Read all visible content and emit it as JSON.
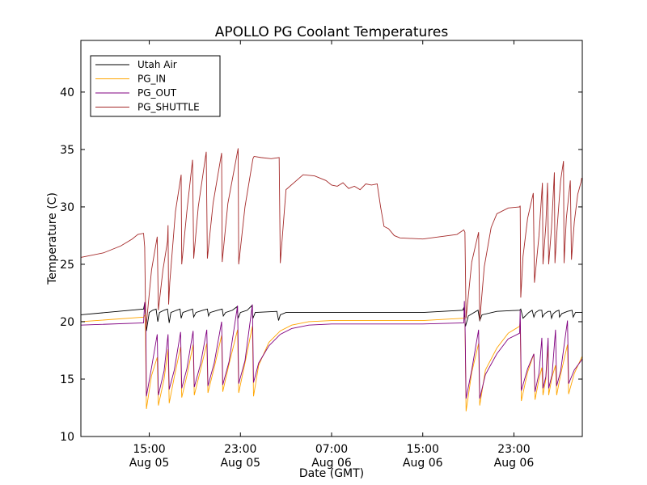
{
  "chart_data": {
    "type": "line",
    "title": "APOLLO PG Coolant Temperatures",
    "xlabel": "Date (GMT)",
    "ylabel": "Temperature (C)",
    "x_unit": "hours since Aug 05 09:00 GMT",
    "xlim": [
      0,
      44
    ],
    "ylim": [
      10,
      44.5
    ],
    "y_ticks": [
      10,
      15,
      20,
      25,
      30,
      35,
      40
    ],
    "x_ticks": [
      {
        "value": 6,
        "time": "15:00",
        "date": "Aug 05"
      },
      {
        "value": 14,
        "time": "23:00",
        "date": "Aug 05"
      },
      {
        "value": 22,
        "time": "07:00",
        "date": "Aug 06"
      },
      {
        "value": 30,
        "time": "15:00",
        "date": "Aug 06"
      },
      {
        "value": 38,
        "time": "23:00",
        "date": "Aug 06"
      }
    ],
    "legend_position": "top-left",
    "series": [
      {
        "name": "Utah Air",
        "color": "#000000",
        "x": [
          0,
          5.5,
          5.6,
          5.75,
          6.0,
          6.3,
          6.6,
          6.75,
          6.9,
          7.3,
          7.6,
          7.75,
          7.9,
          8.4,
          8.7,
          8.8,
          8.95,
          9.5,
          9.8,
          9.9,
          10.1,
          10.7,
          11.1,
          11.2,
          11.35,
          12.0,
          12.4,
          12.5,
          12.7,
          13.3,
          13.7,
          13.8,
          14.0,
          14.6,
          15.0,
          15.1,
          15.3,
          17.2,
          17.35,
          17.5,
          18.0,
          22.0,
          26.0,
          30.0,
          33.5,
          33.6,
          33.75,
          34.0,
          34.5,
          34.85,
          35.0,
          35.2,
          36.5,
          38.5,
          38.6,
          38.8,
          39.3,
          39.6,
          39.75,
          39.9,
          40.2,
          40.45,
          40.5,
          40.7,
          41.0,
          41.2,
          41.3,
          41.45,
          41.7,
          41.95,
          42.0,
          42.2,
          42.7,
          43.1,
          43.2,
          43.4,
          44.0
        ],
        "y": [
          20.6,
          21.1,
          21.6,
          19.2,
          20.8,
          21.0,
          21.1,
          20.0,
          20.8,
          21.0,
          21.1,
          19.9,
          20.8,
          21.0,
          21.1,
          20.3,
          20.8,
          21.0,
          21.1,
          20.4,
          20.8,
          21.0,
          21.1,
          20.5,
          20.8,
          21.0,
          21.1,
          20.5,
          20.8,
          21.0,
          21.3,
          20.3,
          20.8,
          21.0,
          21.4,
          20.3,
          20.8,
          20.9,
          20.1,
          20.6,
          20.8,
          20.8,
          20.8,
          20.8,
          21.0,
          21.2,
          19.6,
          20.5,
          20.8,
          21.0,
          20.1,
          20.6,
          20.9,
          21.0,
          21.1,
          20.3,
          20.8,
          21.0,
          20.4,
          20.8,
          21.0,
          21.0,
          20.4,
          20.7,
          20.9,
          20.9,
          20.3,
          20.7,
          20.9,
          21.0,
          20.4,
          20.7,
          20.9,
          21.0,
          20.4,
          20.8,
          20.8
        ]
      },
      {
        "name": "PG_IN",
        "color": "#ffa500",
        "x": [
          0,
          5.5,
          5.65,
          5.75,
          6.2,
          6.7,
          6.8,
          7.3,
          7.65,
          7.75,
          8.2,
          8.75,
          8.85,
          9.3,
          9.85,
          9.95,
          10.5,
          11.05,
          11.15,
          11.7,
          12.35,
          12.45,
          13.0,
          13.75,
          13.85,
          14.4,
          15.05,
          15.15,
          15.6,
          16.5,
          17.5,
          18.5,
          20.0,
          22.0,
          26.0,
          30.0,
          33.6,
          33.7,
          33.8,
          34.3,
          34.9,
          35.0,
          35.5,
          36.5,
          37.5,
          38.5,
          38.55,
          38.65,
          39.2,
          39.75,
          39.85,
          40.2,
          40.45,
          40.55,
          40.8,
          41.0,
          41.05,
          41.35,
          41.65,
          41.75,
          42.1,
          42.7,
          42.8,
          43.3,
          43.9,
          43.95,
          44.0
        ],
        "y": [
          20.0,
          20.4,
          20.6,
          12.4,
          15.3,
          16.9,
          12.7,
          15.0,
          17.6,
          12.9,
          15.2,
          17.8,
          13.4,
          15.3,
          18.0,
          13.6,
          15.8,
          18.1,
          13.8,
          16.0,
          18.8,
          13.9,
          16.3,
          19.3,
          13.8,
          16.4,
          19.6,
          13.5,
          16.2,
          18.2,
          19.2,
          19.7,
          20.0,
          20.1,
          20.1,
          20.1,
          20.3,
          20.4,
          12.2,
          15.6,
          18.1,
          12.7,
          15.8,
          17.7,
          19.0,
          19.6,
          20.0,
          13.1,
          15.6,
          17.2,
          13.2,
          15.0,
          16.0,
          13.6,
          15.0,
          17.9,
          13.6,
          15.2,
          16.2,
          13.6,
          15.4,
          18.0,
          13.7,
          15.5,
          16.8,
          16.9,
          17.0
        ]
      },
      {
        "name": "PG_OUT",
        "color": "#800080",
        "x": [
          0,
          5.5,
          5.6,
          5.7,
          5.75,
          6.2,
          6.7,
          6.8,
          7.3,
          7.65,
          7.75,
          8.2,
          8.75,
          8.85,
          9.3,
          9.85,
          9.95,
          10.5,
          11.05,
          11.15,
          11.7,
          12.35,
          12.45,
          13.0,
          13.75,
          13.85,
          14.4,
          15.05,
          15.15,
          15.6,
          16.5,
          17.5,
          18.5,
          20.0,
          22.0,
          26.0,
          30.0,
          33.6,
          33.65,
          33.7,
          33.8,
          34.3,
          34.9,
          35.0,
          35.5,
          36.5,
          37.5,
          38.5,
          38.55,
          38.65,
          39.2,
          39.75,
          39.85,
          40.2,
          40.45,
          40.55,
          40.8,
          41.0,
          41.05,
          41.35,
          41.65,
          41.75,
          42.1,
          42.7,
          42.8,
          43.3,
          43.9,
          43.95,
          44.0
        ],
        "y": [
          19.7,
          19.9,
          21.7,
          20.2,
          13.5,
          16.0,
          18.9,
          13.6,
          15.7,
          18.9,
          14.1,
          15.8,
          19.1,
          14.2,
          15.9,
          19.2,
          14.3,
          16.3,
          19.3,
          14.4,
          16.4,
          20.0,
          14.5,
          16.5,
          21.4,
          14.6,
          16.6,
          21.5,
          14.7,
          16.4,
          17.9,
          18.9,
          19.4,
          19.7,
          19.8,
          19.8,
          19.8,
          19.9,
          21.8,
          20.5,
          13.3,
          15.8,
          19.3,
          13.3,
          15.4,
          17.2,
          18.5,
          19.0,
          21.0,
          14.0,
          15.9,
          17.2,
          13.9,
          15.5,
          18.6,
          14.2,
          15.2,
          18.6,
          14.2,
          15.4,
          19.3,
          14.4,
          15.7,
          20.1,
          14.6,
          15.8,
          16.6,
          16.7,
          16.8
        ]
      },
      {
        "name": "PG_SHUTTLE",
        "color": "#a52a2a",
        "x": [
          0,
          2.0,
          3.5,
          4.5,
          5.0,
          5.5,
          5.6,
          5.7,
          6.2,
          6.7,
          6.8,
          7.2,
          7.6,
          7.65,
          7.7,
          7.8,
          8.3,
          8.8,
          8.85,
          9.3,
          9.8,
          9.9,
          10.3,
          11.0,
          11.1,
          11.6,
          12.35,
          12.4,
          12.9,
          13.8,
          13.85,
          14.4,
          15.1,
          15.2,
          15.8,
          16.7,
          17.4,
          17.5,
          18.0,
          19.5,
          20.5,
          21.5,
          22.0,
          22.5,
          23.0,
          23.5,
          24.0,
          24.5,
          25.0,
          25.5,
          26.0,
          26.3,
          26.6,
          27.0,
          27.5,
          28.0,
          30.0,
          33.0,
          33.6,
          33.7,
          33.8,
          34.3,
          34.9,
          35.0,
          35.4,
          36.0,
          36.5,
          37.5,
          38.5,
          38.55,
          38.6,
          38.8,
          39.2,
          39.7,
          39.8,
          40.2,
          40.5,
          40.55,
          40.8,
          40.95,
          41.05,
          41.3,
          41.55,
          41.6,
          41.8,
          42.1,
          42.35,
          42.4,
          42.6,
          42.95,
          43.05,
          43.3,
          43.6,
          43.9,
          43.95,
          44.0
        ],
        "y": [
          25.6,
          26.0,
          26.6,
          27.2,
          27.6,
          27.7,
          26.5,
          19.3,
          24.5,
          27.4,
          21.0,
          24.5,
          27.0,
          28.4,
          21.5,
          23.4,
          29.6,
          32.8,
          25.0,
          29.6,
          34.1,
          25.5,
          30.0,
          34.8,
          25.5,
          30.3,
          34.7,
          25.2,
          30.3,
          35.1,
          25.0,
          30.0,
          34.2,
          34.4,
          34.3,
          34.2,
          34.3,
          25.1,
          31.5,
          32.8,
          32.7,
          32.3,
          31.9,
          31.8,
          32.1,
          31.6,
          31.8,
          31.5,
          32.0,
          31.9,
          32.0,
          30.0,
          28.3,
          28.1,
          27.5,
          27.3,
          27.2,
          27.6,
          28.0,
          27.8,
          20.3,
          25.2,
          27.8,
          20.1,
          24.8,
          28.2,
          29.4,
          29.9,
          30.0,
          30.1,
          22.1,
          25.7,
          29.0,
          31.2,
          23.4,
          27.5,
          32.1,
          25.0,
          28.4,
          32.1,
          25.0,
          28.2,
          33.0,
          25.1,
          28.3,
          32.3,
          34.0,
          25.1,
          29.0,
          32.3,
          25.4,
          28.7,
          31.1,
          32.2,
          32.5,
          32.5
        ]
      }
    ]
  }
}
